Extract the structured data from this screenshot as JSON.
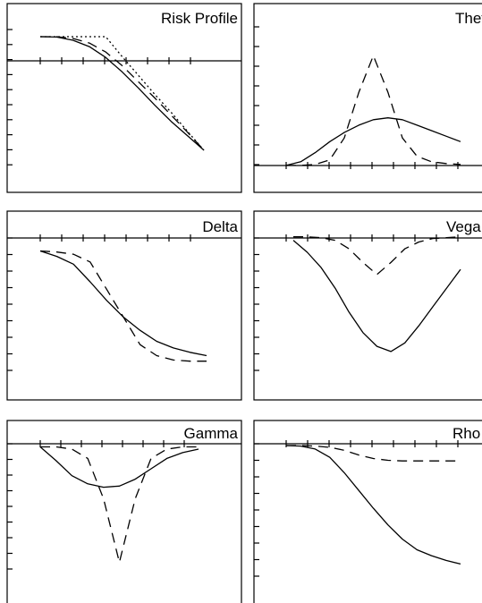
{
  "colors": {
    "line": "#000000",
    "background": "#ffffff"
  },
  "chart_data": [
    {
      "type": "line",
      "title": "Risk Profile",
      "grid": false,
      "x": [
        0,
        1,
        2,
        3,
        4,
        5,
        6,
        7,
        8,
        9,
        10
      ],
      "ylim": [
        -5.5,
        1.3
      ],
      "series": [
        {
          "style": "dotted",
          "values": [
            1.2,
            1.2,
            1.2,
            1.2,
            1.2,
            0.1,
            -0.95,
            -2.0,
            -3.0,
            -4.05,
            -5.1
          ]
        },
        {
          "style": "dashed",
          "values": [
            1.2,
            1.2,
            1.1,
            0.85,
            0.35,
            -0.4,
            -1.3,
            -2.2,
            -3.15,
            -4.1,
            -5.1
          ]
        },
        {
          "style": "solid",
          "values": [
            1.2,
            1.18,
            1.0,
            0.65,
            0.05,
            -0.75,
            -1.65,
            -2.6,
            -3.5,
            -4.3,
            -5.1
          ]
        }
      ]
    },
    {
      "type": "line",
      "title": "Theta",
      "grid": false,
      "x": [
        0,
        1,
        2,
        3,
        4,
        5,
        6,
        7,
        8,
        9,
        10,
        11,
        12
      ],
      "ylim": [
        -0.3,
        6.5
      ],
      "series": [
        {
          "style": "dashed",
          "values": [
            0,
            0,
            0.05,
            0.3,
            1.5,
            4.0,
            6.0,
            4.0,
            1.5,
            0.5,
            0.2,
            0.1,
            0.05
          ]
        },
        {
          "style": "solid",
          "values": [
            0,
            0.2,
            0.7,
            1.3,
            1.8,
            2.2,
            2.5,
            2.6,
            2.5,
            2.2,
            1.9,
            1.6,
            1.3
          ]
        }
      ]
    },
    {
      "type": "line",
      "title": "Delta",
      "grid": false,
      "x": [
        0,
        1,
        2,
        3,
        4,
        5,
        6,
        7,
        8,
        9,
        10
      ],
      "ylim": [
        -1.1,
        0.15
      ],
      "series": [
        {
          "style": "dashed",
          "values": [
            0,
            -0.01,
            -0.03,
            -0.1,
            -0.35,
            -0.6,
            -0.85,
            -0.95,
            -0.99,
            -1.0,
            -1.0
          ]
        },
        {
          "style": "solid",
          "values": [
            0,
            -0.05,
            -0.12,
            -0.28,
            -0.45,
            -0.6,
            -0.72,
            -0.82,
            -0.88,
            -0.92,
            -0.95
          ]
        }
      ]
    },
    {
      "type": "line",
      "title": "Vega",
      "grid": false,
      "x": [
        0,
        1,
        2,
        3,
        4,
        5,
        6,
        7,
        8,
        9,
        10,
        11,
        12
      ],
      "ylim": [
        -7.5,
        0.5
      ],
      "series": [
        {
          "style": "dashed",
          "values": [
            0.2,
            0.2,
            0.15,
            0,
            -0.5,
            -1.3,
            -2.0,
            -1.3,
            -0.5,
            -0.1,
            0.1,
            0.15,
            0.2
          ]
        },
        {
          "style": "solid",
          "values": [
            0,
            -0.7,
            -1.6,
            -2.8,
            -4.2,
            -5.4,
            -6.2,
            -6.5,
            -6.0,
            -5.0,
            -3.9,
            -2.8,
            -1.7
          ]
        }
      ]
    },
    {
      "type": "line",
      "title": "Gamma",
      "grid": false,
      "x": [
        0,
        1,
        2,
        3,
        4,
        5,
        6,
        7,
        8,
        9,
        10
      ],
      "ylim": [
        -1.05,
        0.05
      ],
      "series": [
        {
          "style": "dashed",
          "values": [
            0,
            0,
            -0.02,
            -0.1,
            -0.45,
            -1.0,
            -0.45,
            -0.1,
            -0.02,
            0,
            0
          ]
        },
        {
          "style": "solid",
          "values": [
            0,
            -0.12,
            -0.25,
            -0.32,
            -0.35,
            -0.34,
            -0.28,
            -0.19,
            -0.1,
            -0.05,
            -0.02
          ]
        }
      ]
    },
    {
      "type": "line",
      "title": "Rho",
      "grid": false,
      "x": [
        0,
        1,
        2,
        3,
        4,
        5,
        6,
        7,
        8,
        9,
        10,
        11,
        12
      ],
      "ylim": [
        -10.5,
        0.3
      ],
      "series": [
        {
          "style": "dashed",
          "values": [
            0,
            0,
            -0.05,
            -0.15,
            -0.4,
            -0.8,
            -1.1,
            -1.25,
            -1.3,
            -1.3,
            -1.3,
            -1.3,
            -1.3
          ]
        },
        {
          "style": "solid",
          "values": [
            0,
            -0.05,
            -0.3,
            -1.0,
            -2.3,
            -3.8,
            -5.3,
            -6.7,
            -7.9,
            -8.8,
            -9.3,
            -9.7,
            -10.0
          ]
        }
      ]
    }
  ]
}
